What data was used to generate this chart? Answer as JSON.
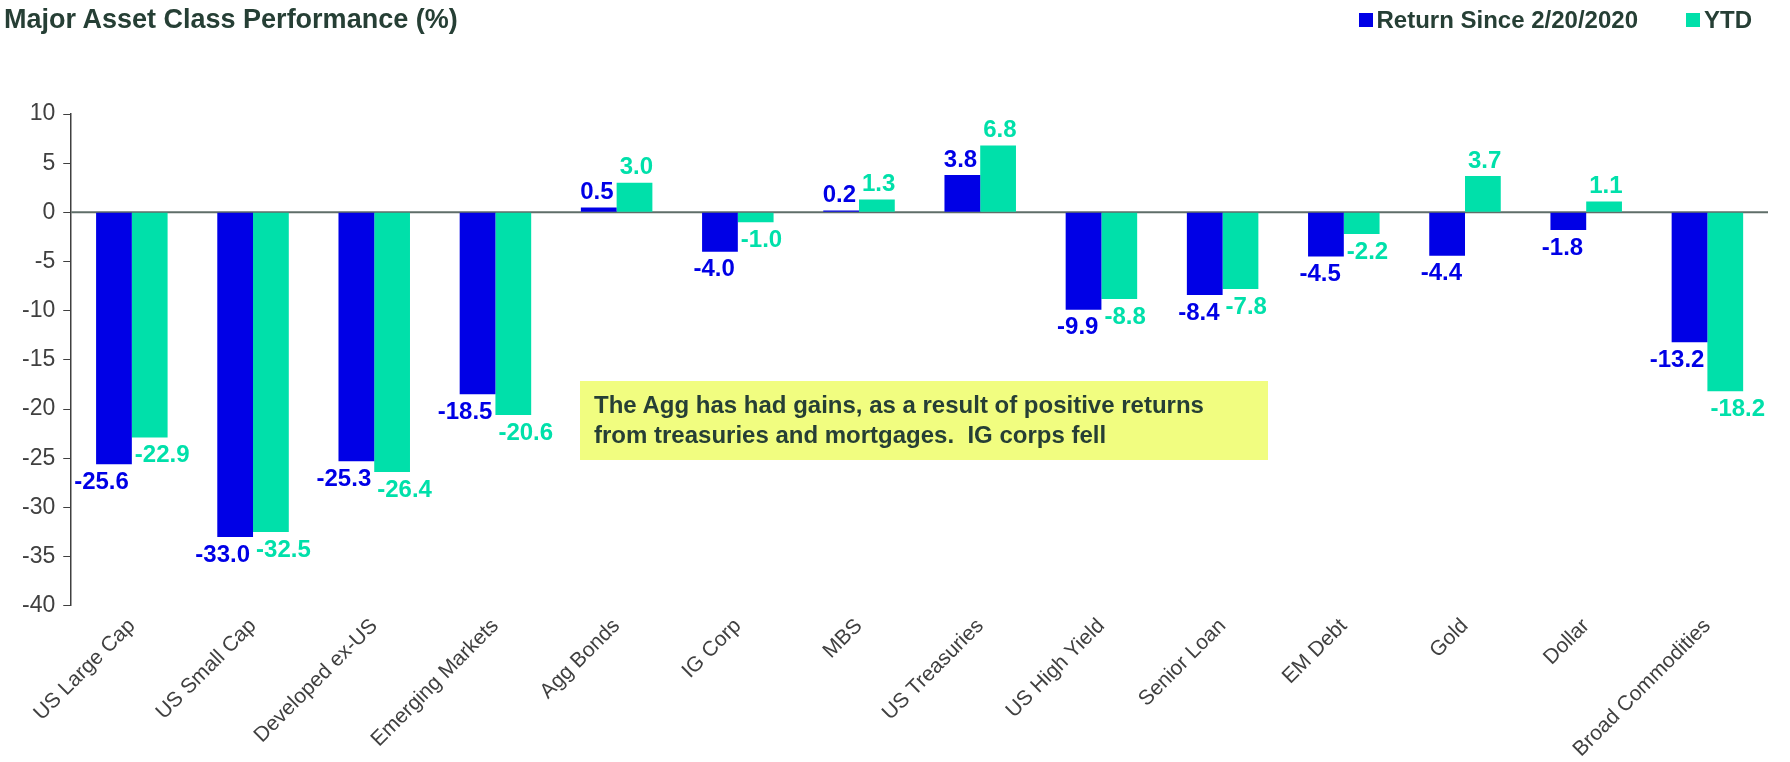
{
  "chart_data": {
    "type": "bar",
    "title": "Major Asset Class Performance (%)",
    "categories": [
      "US Large Cap",
      "US Small Cap",
      "Developed ex-US",
      "Emerging Markets",
      "Agg Bonds",
      "IG Corp",
      "MBS",
      "US Treasuries",
      "US High Yield",
      "Senior Loan",
      "EM Debt",
      "Gold",
      "Dollar",
      "Broad Commodities"
    ],
    "series": [
      {
        "name": "Return Since 2/20/2020",
        "color": "#0000e6",
        "values": [
          -25.6,
          -33.0,
          -25.3,
          -18.5,
          0.5,
          -4.0,
          0.2,
          3.8,
          -9.9,
          -8.4,
          -4.5,
          -4.4,
          -1.8,
          -13.2
        ],
        "value_labels": [
          "-25.6",
          "-33.0",
          "-25.3",
          "-18.5",
          "0.5",
          "-4.0",
          "0.2",
          "3.8",
          "-9.9",
          "-8.4",
          "-4.5",
          "-4.4",
          "-1.8",
          "-13.2"
        ]
      },
      {
        "name": "YTD",
        "color": "#00e0aa",
        "values": [
          -22.9,
          -32.5,
          -26.4,
          -20.6,
          3.0,
          -1.0,
          1.3,
          6.8,
          -8.8,
          -7.8,
          -2.2,
          3.7,
          1.1,
          -18.2
        ],
        "value_labels": [
          "-22.9",
          "-32.5",
          "-26.4",
          "-20.6",
          "3.0",
          "-1.0",
          "1.3",
          "6.8",
          "-8.8",
          "-7.8",
          "-2.2",
          "3.7",
          "1.1",
          "-18.2"
        ]
      }
    ],
    "ylim": [
      -40,
      10
    ],
    "yticks": [
      -40,
      -35,
      -30,
      -25,
      -20,
      -15,
      -10,
      -5,
      0,
      5,
      10
    ],
    "legend": "top right",
    "annotations": [
      "The Agg has had gains, as a result of positive returns from treasuries and mortgages.  IG corps fell"
    ]
  }
}
